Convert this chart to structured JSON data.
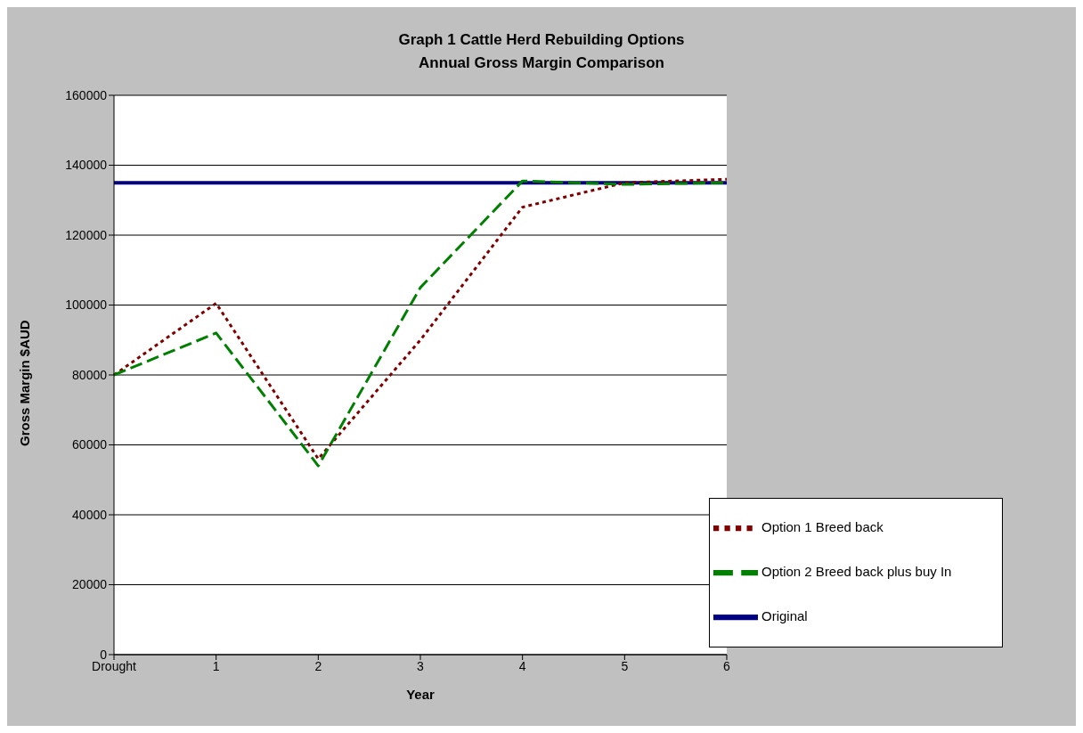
{
  "chart_data": {
    "type": "line",
    "title": "Graph 1 Cattle Herd Rebuilding Options",
    "subtitle": "Annual Gross Margin Comparison",
    "xlabel": "Year",
    "ylabel": "Gross Margin $AUD",
    "categories": [
      "Drought",
      "1",
      "2",
      "3",
      "4",
      "5",
      "6"
    ],
    "series": [
      {
        "name": "Original",
        "color": "#000080",
        "values": [
          135000,
          135000,
          135000,
          135000,
          135000,
          135000,
          135000
        ],
        "line_style": "solid"
      },
      {
        "name": "Option 1 Breed back",
        "color": "#800000",
        "values": [
          80000,
          100500,
          56000,
          90000,
          128000,
          135000,
          136000
        ],
        "line_style": "dotted"
      },
      {
        "name": "Option 2 Breed back plus buy In",
        "color": "#008000",
        "values": [
          80000,
          92000,
          54000,
          105000,
          135500,
          134500,
          135000
        ],
        "line_style": "dashed"
      }
    ],
    "ylim": [
      0,
      160000
    ],
    "yticks": [
      0,
      20000,
      40000,
      60000,
      80000,
      100000,
      120000,
      140000,
      160000
    ],
    "grid": "y",
    "legend": "bottom right",
    "marker": "none"
  }
}
